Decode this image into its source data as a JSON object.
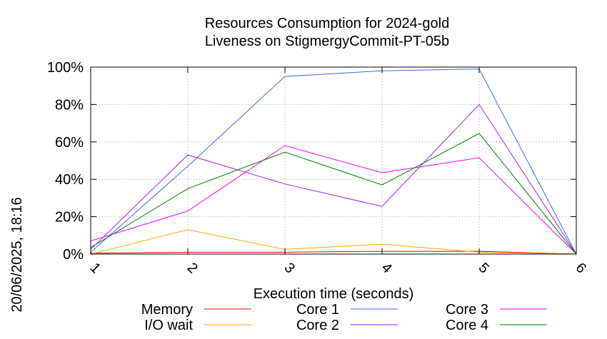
{
  "chart_data": {
    "type": "line",
    "title": [
      "Resources Consumption for 2024-gold",
      "Liveness on StigmergyCommit-PT-05b"
    ],
    "xlabel": "Execution time (seconds)",
    "ylabel": "",
    "side_label": "20/06/2025, 18:16",
    "x": [
      1,
      2,
      3,
      4,
      5,
      6
    ],
    "xlim": [
      1,
      6
    ],
    "ylim": [
      0,
      100
    ],
    "x_ticks": [
      "1",
      "2",
      "3",
      "4",
      "5",
      "6"
    ],
    "y_ticks": [
      "0%",
      "20%",
      "40%",
      "60%",
      "80%",
      "100%"
    ],
    "grid": true,
    "legend_position": "bottom",
    "series": [
      {
        "name": "Memory",
        "color": "#ff0000",
        "values": [
          0.5,
          1,
          1,
          1.5,
          1.5,
          0
        ]
      },
      {
        "name": "I/O wait",
        "color": "#ffa500",
        "values": [
          0,
          13,
          2.5,
          5.3,
          1,
          0
        ]
      },
      {
        "name": "Core 1",
        "color": "#4169e1",
        "values": [
          1,
          47,
          95,
          98,
          99,
          0
        ]
      },
      {
        "name": "Core 2",
        "color": "#a020f0",
        "values": [
          2.5,
          53,
          37.5,
          25.5,
          80,
          0
        ]
      },
      {
        "name": "Core 3",
        "color": "#ff00ff",
        "values": [
          7,
          23,
          58,
          43.5,
          51.5,
          0
        ]
      },
      {
        "name": "Core 4",
        "color": "#008000",
        "values": [
          3.5,
          35,
          54.5,
          37,
          64.5,
          0
        ]
      }
    ]
  }
}
